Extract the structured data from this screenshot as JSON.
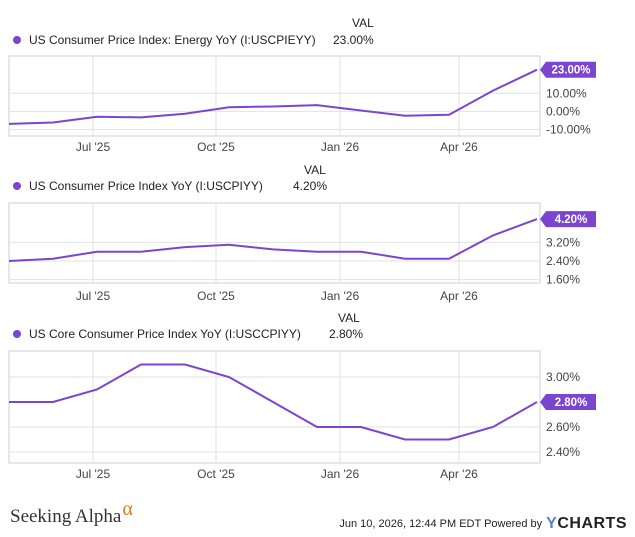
{
  "colors": {
    "line": "#7b45cf",
    "grid": "#e2e2e2",
    "frame": "#cfcfcf"
  },
  "x_ticks": [
    "Jul '25",
    "Oct '25",
    "Jan '26",
    "Apr '26"
  ],
  "chart_data": [
    {
      "type": "line",
      "legend_label": "US Consumer Price Index: Energy YoY (I:USCPIEYY)",
      "val_header": "VAL",
      "val": "23.00%",
      "badge": "23.00%",
      "y_ticks": [
        "10.00%",
        "0.00%",
        "-10.00%"
      ],
      "y_tick_values": [
        10,
        0,
        -10
      ],
      "ylim": [
        -13,
        30
      ],
      "x": [
        "2025-05",
        "2025-06",
        "2025-07",
        "2025-08",
        "2025-09",
        "2025-10",
        "2025-11",
        "2025-12",
        "2026-01",
        "2026-02",
        "2026-03",
        "2026-04",
        "2026-05"
      ],
      "values": [
        -6.9,
        -6.1,
        -2.9,
        -3.3,
        -1.3,
        2.3,
        2.7,
        3.5,
        0.5,
        -2.4,
        -1.8,
        11.5,
        23.0
      ]
    },
    {
      "type": "line",
      "legend_label": "US Consumer Price Index YoY (I:USCPIYY)",
      "val_header": "VAL",
      "val": "4.20%",
      "badge": "4.20%",
      "y_ticks": [
        "3.20%",
        "2.40%",
        "1.60%"
      ],
      "y_tick_values": [
        3.2,
        2.4,
        1.6
      ],
      "ylim": [
        1.5,
        4.85
      ],
      "x": [
        "2025-05",
        "2025-06",
        "2025-07",
        "2025-08",
        "2025-09",
        "2025-10",
        "2025-11",
        "2025-12",
        "2026-01",
        "2026-02",
        "2026-03",
        "2026-04",
        "2026-05"
      ],
      "values": [
        2.4,
        2.5,
        2.8,
        2.8,
        3.0,
        3.1,
        2.9,
        2.8,
        2.8,
        2.5,
        2.5,
        3.5,
        4.2
      ]
    },
    {
      "type": "line",
      "legend_label": "US Core Consumer Price Index YoY (I:USCCPIYY)",
      "val_header": "VAL",
      "val": "2.80%",
      "badge": "2.80%",
      "y_ticks": [
        "3.00%",
        "2.60%",
        "2.40%"
      ],
      "y_tick_values": [
        3.0,
        2.6,
        2.4
      ],
      "ylim": [
        2.32,
        3.2
      ],
      "x": [
        "2025-05",
        "2025-06",
        "2025-07",
        "2025-08",
        "2025-09",
        "2025-10",
        "2025-11",
        "2025-12",
        "2026-01",
        "2026-02",
        "2026-03",
        "2026-04",
        "2026-05"
      ],
      "values": [
        2.8,
        2.8,
        2.9,
        3.1,
        3.1,
        3.0,
        2.8,
        2.6,
        2.6,
        2.5,
        2.5,
        2.6,
        2.8
      ]
    }
  ],
  "footer": {
    "logo_text": "Seeking Alpha",
    "logo_symbol": "α",
    "timestamp": "Jun 10, 2026, 12:44 PM EDT Powered by",
    "brand_y": "Y",
    "brand_rest": "CHARTS"
  }
}
